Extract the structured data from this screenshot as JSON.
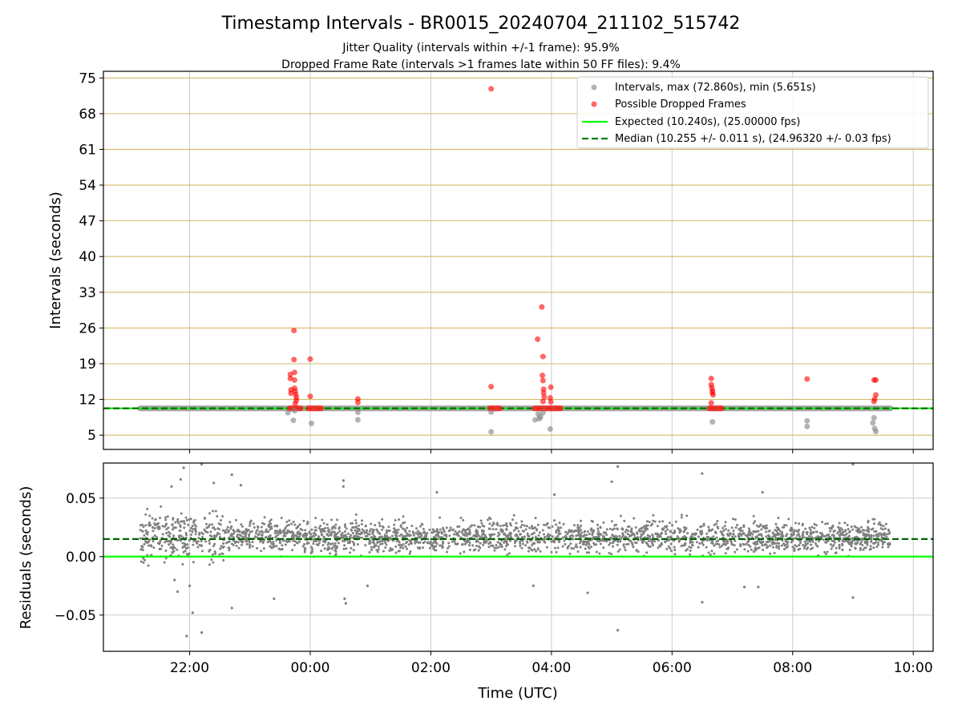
{
  "figure": {
    "title": "Timestamp Intervals - BR0015_20240704_211102_515742",
    "subtitle_1": "Jitter Quality (intervals within +/-1 frame): 95.9%",
    "subtitle_2": "Dropped Frame Rate (intervals >1 frames late within 50 FF files): 9.4%"
  },
  "chart_data": [
    {
      "type": "scatter",
      "ylabel": "Intervals (seconds)",
      "ylim": [
        2.2,
        76.3
      ],
      "yticks": [
        5,
        12,
        19,
        26,
        33,
        40,
        47,
        54,
        61,
        68,
        75
      ],
      "ytick_labels": [
        "5",
        "12",
        "19",
        "26",
        "33",
        "40",
        "47",
        "54",
        "61",
        "68",
        "75"
      ],
      "xlim": [
        20.57,
        34.33
      ],
      "xticks": [
        22,
        24,
        26,
        28,
        30,
        32,
        34
      ],
      "grid": true,
      "hgrid_color": "#d4b96a",
      "legend_position": "upper right",
      "legend": [
        "Intervals, max (72.860s), min (5.651s)",
        "Possible Dropped Frames",
        "Expected (10.240s), (25.00000 fps)",
        "Median (10.255 +/- 0.011 s), (24.96320 +/- 0.03 fps)"
      ],
      "baseline": {
        "x_start": 21.18,
        "x_end": 33.62,
        "y": 10.24
      },
      "expected": 10.24,
      "median": 10.255,
      "dropped_band_ranges": [
        [
          23.66,
          23.84
        ],
        [
          23.97,
          24.18
        ],
        [
          26.98,
          27.14
        ],
        [
          27.72,
          28.15
        ],
        [
          30.62,
          30.82
        ]
      ],
      "series": [
        {
          "name": "Intervals",
          "color": "#808080",
          "points": [
            [
              23.63,
              9.4
            ],
            [
              23.72,
              7.9
            ],
            [
              23.74,
              9.8
            ],
            [
              24.02,
              7.3
            ],
            [
              24.79,
              9.5
            ],
            [
              24.79,
              8.0
            ],
            [
              27.0,
              5.65
            ],
            [
              27.0,
              9.5
            ],
            [
              27.73,
              8.0
            ],
            [
              27.78,
              9.1
            ],
            [
              27.8,
              8.2
            ],
            [
              27.82,
              8.6
            ],
            [
              27.86,
              9.4
            ],
            [
              27.98,
              6.2
            ],
            [
              30.67,
              7.6
            ],
            [
              32.24,
              7.8
            ],
            [
              32.24,
              6.7
            ],
            [
              33.33,
              7.4
            ],
            [
              33.35,
              8.4
            ],
            [
              33.36,
              6.3
            ],
            [
              33.38,
              5.7
            ]
          ]
        },
        {
          "name": "Possible Dropped Frames",
          "color": "#ff0000",
          "points": [
            [
              23.67,
              16.9
            ],
            [
              23.67,
              16.1
            ],
            [
              23.68,
              13.9
            ],
            [
              23.68,
              13.2
            ],
            [
              23.73,
              25.5
            ],
            [
              23.73,
              19.8
            ],
            [
              23.74,
              17.3
            ],
            [
              23.74,
              15.8
            ],
            [
              23.74,
              14.2
            ],
            [
              23.75,
              13.6
            ],
            [
              23.76,
              13.0
            ],
            [
              23.77,
              12.4
            ],
            [
              23.77,
              11.8
            ],
            [
              23.75,
              11.2
            ],
            [
              24.0,
              19.9
            ],
            [
              24.0,
              12.6
            ],
            [
              24.79,
              12.1
            ],
            [
              24.79,
              11.4
            ],
            [
              27.0,
              72.86
            ],
            [
              27.0,
              14.5
            ],
            [
              27.77,
              23.8
            ],
            [
              27.84,
              30.1
            ],
            [
              27.86,
              20.4
            ],
            [
              27.85,
              16.7
            ],
            [
              27.86,
              15.7
            ],
            [
              27.87,
              14.0
            ],
            [
              27.87,
              13.3
            ],
            [
              27.88,
              12.5
            ],
            [
              27.86,
              11.6
            ],
            [
              27.99,
              14.4
            ],
            [
              27.98,
              12.3
            ],
            [
              27.99,
              11.5
            ],
            [
              30.65,
              16.1
            ],
            [
              30.65,
              14.9
            ],
            [
              30.66,
              14.3
            ],
            [
              30.67,
              13.7
            ],
            [
              30.67,
              13.3
            ],
            [
              30.68,
              12.9
            ],
            [
              30.65,
              11.3
            ],
            [
              32.24,
              16.0
            ],
            [
              33.35,
              15.8
            ],
            [
              33.38,
              15.8
            ],
            [
              33.38,
              12.9
            ],
            [
              33.36,
              12.1
            ],
            [
              33.35,
              11.6
            ]
          ]
        },
        {
          "name": "Expected",
          "color": "#00ff00",
          "y": 10.24
        },
        {
          "name": "Median",
          "color": "#008000",
          "y": 10.255
        }
      ]
    },
    {
      "type": "scatter",
      "xlabel": "Time (UTC)",
      "ylabel": "Residuals (seconds)",
      "ylim": [
        -0.081,
        0.08
      ],
      "yticks": [
        -0.05,
        0.0,
        0.05
      ],
      "ytick_labels": [
        "−0.05",
        "0.00",
        "0.05"
      ],
      "xlim": [
        20.57,
        34.33
      ],
      "xticks": [
        22,
        24,
        26,
        28,
        30,
        32,
        34
      ],
      "xtick_labels": [
        "22:00",
        "00:00",
        "02:00",
        "04:00",
        "06:00",
        "08:00",
        "10:00"
      ],
      "grid": true,
      "expected_residual": 0.0,
      "median_residual": 0.015,
      "cloud": {
        "x_start": 21.18,
        "x_end": 33.62,
        "center": 0.017,
        "spread": 0.012,
        "count": 2600
      },
      "series": [
        {
          "name": "Residuals",
          "color": "#808080",
          "outliers": [
            [
              21.95,
              -0.068
            ],
            [
              21.9,
              0.076
            ],
            [
              22.2,
              0.079
            ],
            [
              21.7,
              0.06
            ],
            [
              22.05,
              -0.048
            ],
            [
              22.2,
              -0.065
            ],
            [
              22.7,
              0.07
            ],
            [
              22.7,
              -0.044
            ],
            [
              23.4,
              -0.036
            ],
            [
              22.4,
              0.063
            ],
            [
              22.85,
              0.061
            ],
            [
              24.55,
              0.065
            ],
            [
              24.55,
              0.06
            ],
            [
              24.57,
              -0.036
            ],
            [
              24.59,
              -0.04
            ],
            [
              24.95,
              -0.025
            ],
            [
              26.1,
              0.055
            ],
            [
              27.7,
              -0.025
            ],
            [
              28.6,
              -0.031
            ],
            [
              28.05,
              0.053
            ],
            [
              29.0,
              0.064
            ],
            [
              29.1,
              0.077
            ],
            [
              29.1,
              -0.063
            ],
            [
              30.5,
              0.071
            ],
            [
              30.5,
              -0.039
            ],
            [
              31.2,
              -0.026
            ],
            [
              31.43,
              -0.026
            ],
            [
              31.5,
              0.055
            ],
            [
              33.0,
              0.079
            ],
            [
              33.0,
              -0.035
            ],
            [
              21.8,
              -0.03
            ],
            [
              22.0,
              -0.025
            ],
            [
              21.85,
              0.066
            ],
            [
              21.75,
              -0.02
            ]
          ]
        },
        {
          "name": "Expected",
          "color": "#00ff00",
          "y": 0.0
        },
        {
          "name": "Median",
          "color": "#008000",
          "y": 0.015
        }
      ]
    }
  ]
}
